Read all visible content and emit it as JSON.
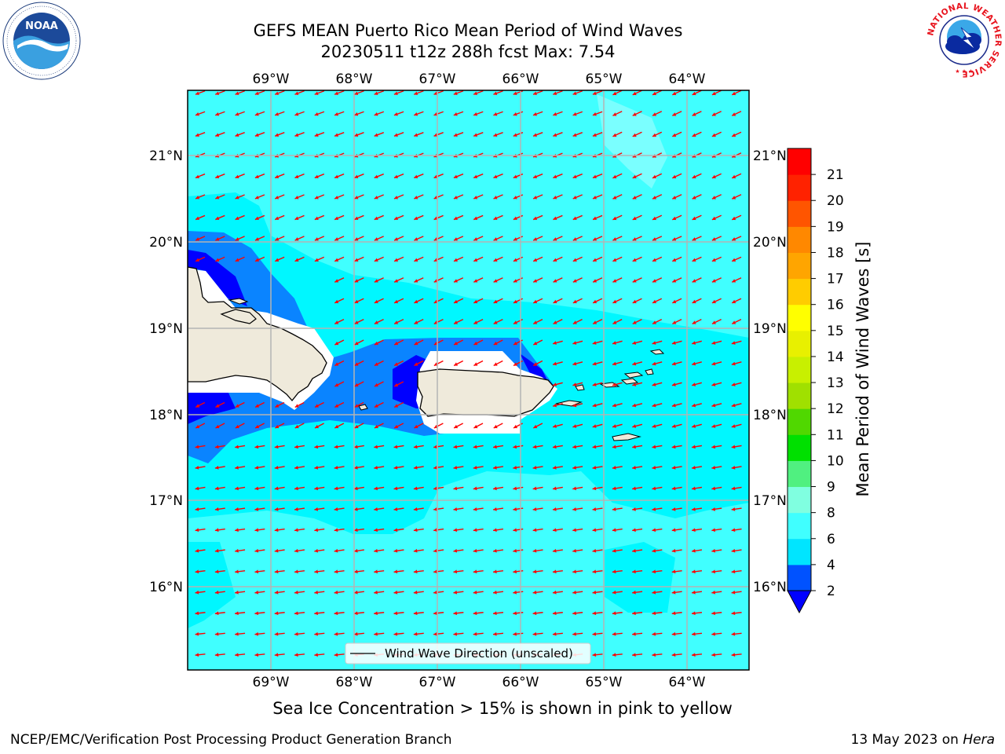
{
  "title": {
    "line1": "GEFS MEAN Puerto Rico Mean Period of Wind Waves",
    "line2": "20230511 t12z 288h fcst   Max: 7.54"
  },
  "map": {
    "lon_labels": [
      "69°W",
      "68°W",
      "67°W",
      "66°W",
      "65°W",
      "64°W"
    ],
    "lat_labels": [
      "21°N",
      "20°N",
      "19°N",
      "18°N",
      "17°N",
      "16°N"
    ],
    "legend_label": "Wind Wave Direction (unscaled)",
    "arrow_color": "#ff0000"
  },
  "colorbar": {
    "label": "Mean Period of Wind Waves [s]",
    "ticks": [
      "2",
      "4",
      "6",
      "8",
      "9",
      "10",
      "11",
      "12",
      "13",
      "14",
      "15",
      "16",
      "17",
      "18",
      "19",
      "20",
      "21"
    ],
    "colors": [
      "#0052ff",
      "#00e5ff",
      "#40ffff",
      "#80ffe0",
      "#50f080",
      "#00e000",
      "#50d800",
      "#a0e000",
      "#c8f000",
      "#e8f000",
      "#ffff00",
      "#ffcc00",
      "#ffa500",
      "#ff8800",
      "#ff5500",
      "#ff2200",
      "#ff0000"
    ],
    "under_color": "#0000ff"
  },
  "caption": "Sea Ice Concentration > 15% is shown in pink to yellow",
  "footer": {
    "left": "NCEP/EMC/Verification Post Processing Product Generation Branch",
    "right_prefix": "13 May 2023 on ",
    "right_host": "Hera"
  },
  "logos": {
    "noaa_text": "NOAA",
    "nws_ring": "NATIONAL WEATHER SERVICE"
  }
}
